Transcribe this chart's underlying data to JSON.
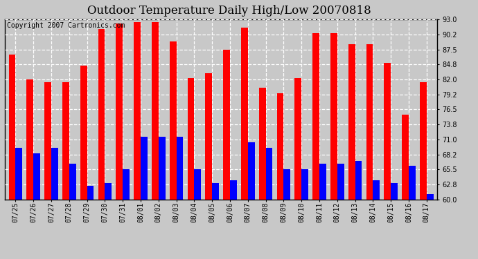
{
  "title": "Outdoor Temperature Daily High/Low 20070818",
  "copyright": "Copyright 2007 Cartronics.com",
  "labels": [
    "07/25",
    "07/26",
    "07/27",
    "07/28",
    "07/29",
    "07/30",
    "07/31",
    "08/01",
    "08/02",
    "08/03",
    "08/04",
    "08/05",
    "08/06",
    "08/07",
    "08/08",
    "08/09",
    "08/10",
    "08/11",
    "08/12",
    "08/13",
    "08/14",
    "08/15",
    "08/16",
    "08/17"
  ],
  "highs": [
    86.5,
    82.0,
    81.5,
    81.5,
    84.5,
    91.2,
    92.2,
    92.5,
    92.5,
    89.0,
    82.2,
    83.2,
    87.5,
    91.5,
    80.5,
    79.5,
    82.2,
    90.5,
    90.5,
    88.5,
    88.5,
    85.0,
    75.5,
    81.5
  ],
  "lows": [
    69.5,
    68.5,
    69.5,
    66.5,
    62.5,
    63.0,
    65.5,
    71.5,
    71.5,
    71.5,
    65.5,
    63.0,
    63.5,
    70.5,
    69.5,
    65.5,
    65.5,
    66.5,
    66.5,
    67.0,
    63.5,
    63.0,
    66.2,
    61.0
  ],
  "bar_color_high": "#ff0000",
  "bar_color_low": "#0000ff",
  "fig_bg_color": "#c8c8c8",
  "plot_bg_color": "#c8c8c8",
  "grid_color": "#ffffff",
  "ymin": 60.0,
  "ymax": 93.0,
  "yticks": [
    60.0,
    62.8,
    65.5,
    68.2,
    71.0,
    73.8,
    76.5,
    79.2,
    82.0,
    84.8,
    87.5,
    90.2,
    93.0
  ],
  "title_fontsize": 12,
  "copyright_fontsize": 7,
  "tick_fontsize": 7,
  "bar_width": 0.38
}
